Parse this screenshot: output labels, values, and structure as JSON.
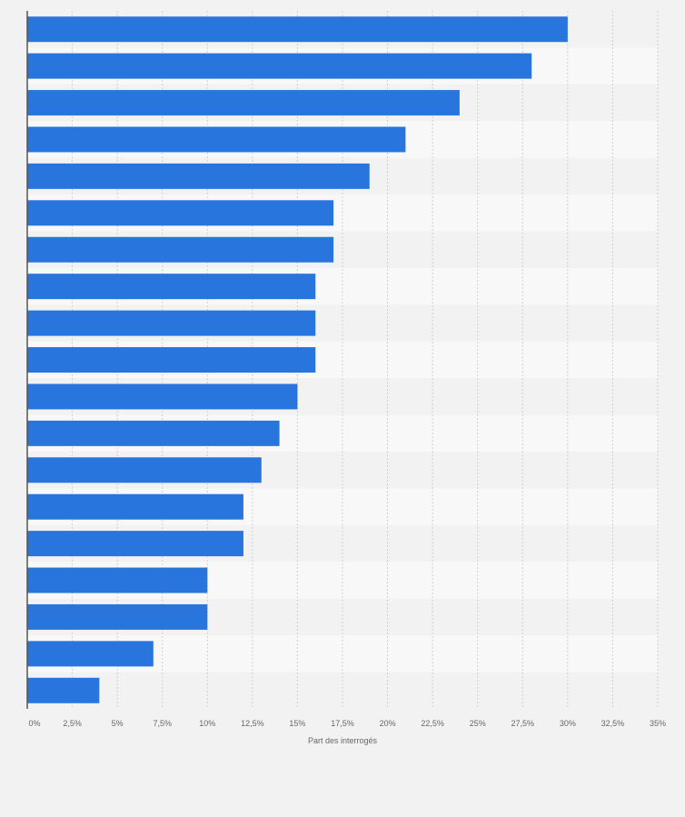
{
  "chart_data": {
    "type": "bar",
    "orientation": "horizontal",
    "title": "",
    "xlabel": "Part des interrogés",
    "ylabel": "",
    "categories": [
      "",
      "",
      "",
      "",
      "",
      "",
      "",
      "",
      "",
      "",
      "",
      "",
      "",
      "",
      "",
      "",
      "",
      "",
      ""
    ],
    "values": [
      30,
      28,
      24,
      21,
      19,
      17,
      17,
      16,
      16,
      16,
      15,
      14,
      13,
      12,
      12,
      10,
      10,
      7,
      4
    ],
    "xlim": [
      0,
      35
    ],
    "x_ticks": [
      0,
      2.5,
      5,
      7.5,
      10,
      12.5,
      15,
      17.5,
      20,
      22.5,
      25,
      27.5,
      30,
      32.5,
      35
    ],
    "x_tick_labels": [
      "0%",
      "2,5%",
      "5%",
      "7,5%",
      "10%",
      "12,5%",
      "15%",
      "17,5%",
      "20%",
      "22,5%",
      "25%",
      "27,5%",
      "30%",
      "32,5%",
      "35%"
    ],
    "grid": true,
    "bar_color": "#2876dd"
  }
}
